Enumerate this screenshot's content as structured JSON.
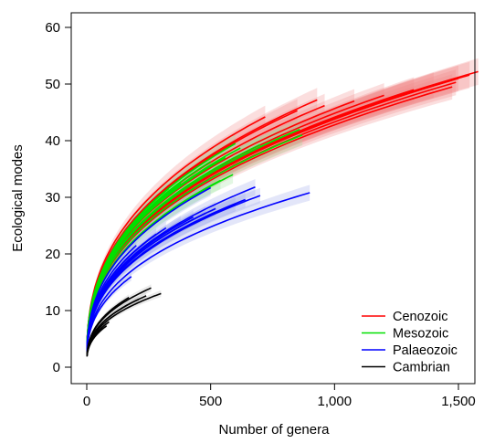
{
  "chart_data": {
    "type": "line",
    "xlabel": "Number of genera",
    "ylabel": "Ecological modes",
    "xlim": [
      0,
      1600
    ],
    "ylim": [
      0,
      60
    ],
    "xticks": [
      0,
      500,
      1000,
      1500
    ],
    "xtick_labels": [
      "0",
      "500",
      "1,000",
      "1,500"
    ],
    "yticks": [
      0,
      10,
      20,
      30,
      40,
      50,
      60
    ],
    "ytick_labels": [
      "0",
      "10",
      "20",
      "30",
      "40",
      "50",
      "60"
    ],
    "grid": false,
    "legend_position": "bottom-right",
    "series": [
      {
        "name": "Cenozoic",
        "color": "#ff0000",
        "band_color": "#f08a8a",
        "curves": [
          {
            "x_end": 1580,
            "y_end": 52.2
          },
          {
            "x_end": 1545,
            "y_end": 51.6
          },
          {
            "x_end": 1500,
            "y_end": 51.0
          },
          {
            "x_end": 1490,
            "y_end": 50.3
          },
          {
            "x_end": 1475,
            "y_end": 49.5
          },
          {
            "x_end": 1400,
            "y_end": 49.8
          },
          {
            "x_end": 1320,
            "y_end": 49.0
          },
          {
            "x_end": 1200,
            "y_end": 48.0
          },
          {
            "x_end": 1080,
            "y_end": 47.0
          },
          {
            "x_end": 960,
            "y_end": 46.2
          },
          {
            "x_end": 930,
            "y_end": 47.2
          },
          {
            "x_end": 850,
            "y_end": 45.3
          },
          {
            "x_end": 720,
            "y_end": 44.2
          }
        ]
      },
      {
        "name": "Mesozoic",
        "color": "#00e000",
        "band_color": "#9be29b",
        "curves": [
          {
            "x_end": 860,
            "y_end": 42.0
          },
          {
            "x_end": 870,
            "y_end": 41.0
          },
          {
            "x_end": 780,
            "y_end": 40.5
          },
          {
            "x_end": 700,
            "y_end": 39.3
          },
          {
            "x_end": 620,
            "y_end": 38.7
          },
          {
            "x_end": 600,
            "y_end": 39.5
          },
          {
            "x_end": 560,
            "y_end": 37.0
          },
          {
            "x_end": 500,
            "y_end": 36.3
          },
          {
            "x_end": 480,
            "y_end": 35.0
          },
          {
            "x_end": 590,
            "y_end": 34.0
          },
          {
            "x_end": 430,
            "y_end": 33.5
          },
          {
            "x_end": 540,
            "y_end": 33.0
          },
          {
            "x_end": 380,
            "y_end": 32.5
          },
          {
            "x_end": 330,
            "y_end": 31.5
          }
        ]
      },
      {
        "name": "Palaeozoic",
        "color": "#0000ff",
        "band_color": "#9aa6ea",
        "curves": [
          {
            "x_end": 900,
            "y_end": 30.8
          },
          {
            "x_end": 680,
            "y_end": 31.8
          },
          {
            "x_end": 700,
            "y_end": 30.3
          },
          {
            "x_end": 640,
            "y_end": 29.6
          },
          {
            "x_end": 600,
            "y_end": 28.8
          },
          {
            "x_end": 520,
            "y_end": 28.0
          },
          {
            "x_end": 500,
            "y_end": 31.7
          },
          {
            "x_end": 480,
            "y_end": 27.2
          },
          {
            "x_end": 430,
            "y_end": 26.5
          },
          {
            "x_end": 380,
            "y_end": 25.6
          },
          {
            "x_end": 320,
            "y_end": 24.6
          },
          {
            "x_end": 280,
            "y_end": 23.5
          },
          {
            "x_end": 200,
            "y_end": 21.5
          },
          {
            "x_end": 180,
            "y_end": 16.0
          }
        ]
      },
      {
        "name": "Cambrian",
        "color": "#000000",
        "band_color": "#b5b5b5",
        "curves": [
          {
            "x_end": 300,
            "y_end": 13.0
          },
          {
            "x_end": 260,
            "y_end": 14.0
          },
          {
            "x_end": 240,
            "y_end": 12.6
          },
          {
            "x_end": 210,
            "y_end": 12.0
          },
          {
            "x_end": 170,
            "y_end": 12.3
          },
          {
            "x_end": 90,
            "y_end": 8.0
          },
          {
            "x_end": 80,
            "y_end": 7.3
          }
        ]
      }
    ]
  }
}
